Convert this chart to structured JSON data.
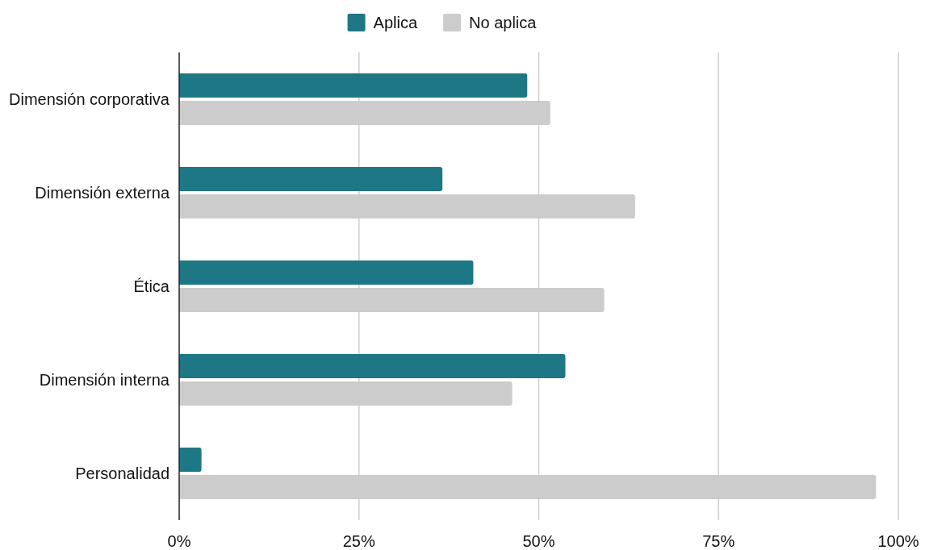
{
  "chart_data": {
    "type": "bar",
    "orientation": "horizontal",
    "categories": [
      "Dimensión corporativa",
      "Dimensión externa",
      "Ética",
      "Dimensión interna",
      "Personalidad"
    ],
    "series": [
      {
        "name": "Aplica",
        "color": "#1e7785",
        "values": [
          48.4,
          36.6,
          40.9,
          53.7,
          3.1
        ]
      },
      {
        "name": "No aplica",
        "color": "#cccccc",
        "values": [
          51.6,
          63.4,
          59.1,
          46.3,
          96.9
        ]
      }
    ],
    "xlim": [
      0,
      100
    ],
    "xticks": [
      {
        "value": 0,
        "label": "0%"
      },
      {
        "value": 25,
        "label": "25%"
      },
      {
        "value": 50,
        "label": "50%"
      },
      {
        "value": 75,
        "label": "75%"
      },
      {
        "value": 100,
        "label": "100%"
      }
    ],
    "grid": "x",
    "legend": "top"
  }
}
